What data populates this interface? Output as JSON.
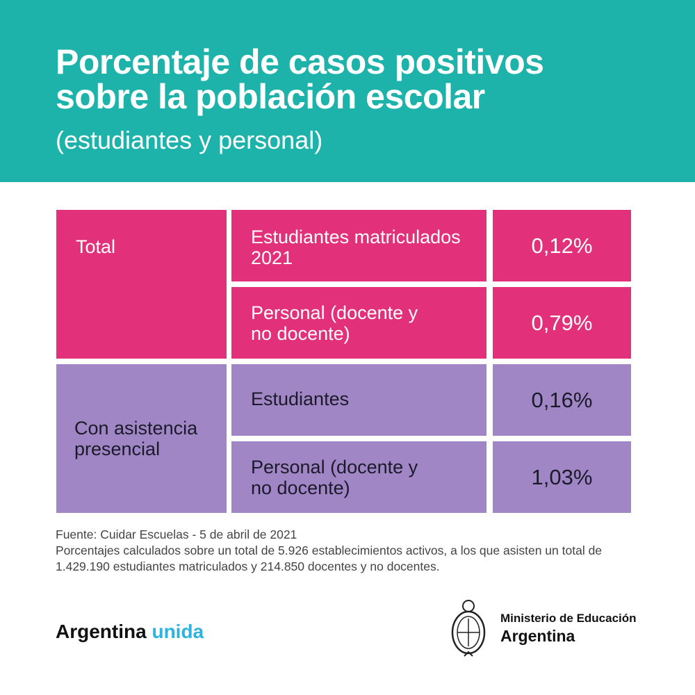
{
  "header": {
    "title_line1": "Porcentaje de casos positivos",
    "title_line2": "sobre la población escolar",
    "subtitle": "(estudiantes y personal)"
  },
  "table": {
    "groups": [
      {
        "label": "Total",
        "rows": [
          {
            "label": "Estudiantes matriculados 2021",
            "value": "0,12%"
          },
          {
            "label": "Personal (docente y no docente)",
            "value": "0,79%"
          }
        ]
      },
      {
        "label": "Con asistencia presencial",
        "rows": [
          {
            "label": "Estudiantes",
            "value": "0,16%"
          },
          {
            "label": "Personal (docente y no docente)",
            "value": "1,03%"
          }
        ]
      }
    ]
  },
  "footer": {
    "source": "Fuente: Cuidar Escuelas - 5 de abril de 2021",
    "note": "Porcentajes calculados sobre un total de 5.926 establecimientos activos, a los que asisten un total de 1.429.190 estudiantes matriculados y 214.850 docentes y no docentes."
  },
  "brand": {
    "word1": "Argentina",
    "word2": "unida"
  },
  "ministry": {
    "line1": "Ministerio de Educación",
    "line2": "Argentina"
  },
  "colors": {
    "header": "#1db3ab",
    "total": "#e3307a",
    "presencial": "#a086c4",
    "accent": "#2cb3e2"
  }
}
